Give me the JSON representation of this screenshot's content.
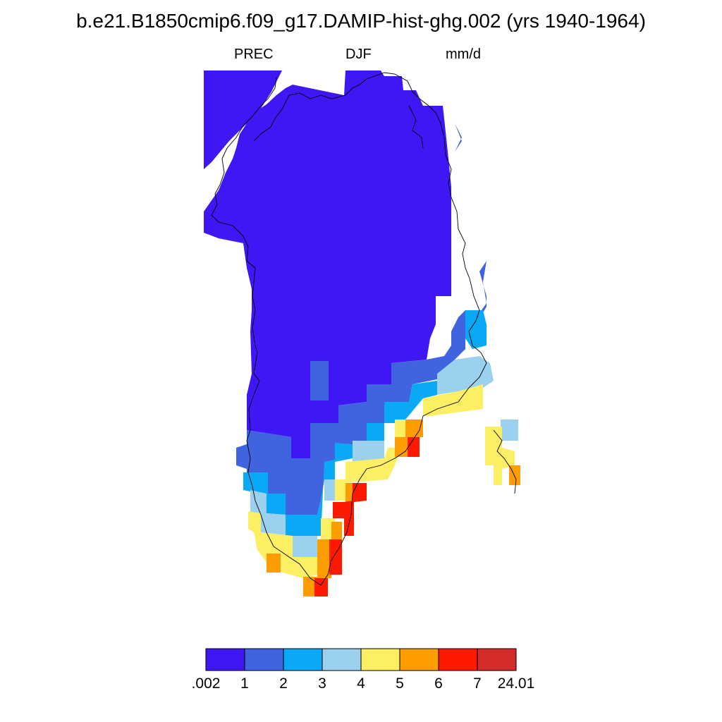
{
  "figure": {
    "title": "b.e21.B1850cmip6.f09_g17.DAMIP-hist-ghg.002 (yrs 1940-1964)",
    "variable": "PREC",
    "season": "DJF",
    "units": "mm/d"
  },
  "colorbar": {
    "labels": [
      ".002",
      "1",
      "2",
      "3",
      "4",
      "5",
      "6",
      "7",
      "24.01"
    ],
    "colors": [
      "#3f17f5",
      "#4064e0",
      "#09a9f5",
      "#9bd0ee",
      "#fdef64",
      "#fd9d00",
      "#fd1a00",
      "#d42b2b"
    ]
  },
  "map": {
    "region": "Greenland",
    "field_levels": {
      "dark-blue": "0.002–1",
      "mid-blue": "1–2",
      "cyan": "2–3",
      "light-blue": "3–4",
      "yellow": "4–5",
      "orange": "5–6",
      "red": "6–7"
    }
  }
}
